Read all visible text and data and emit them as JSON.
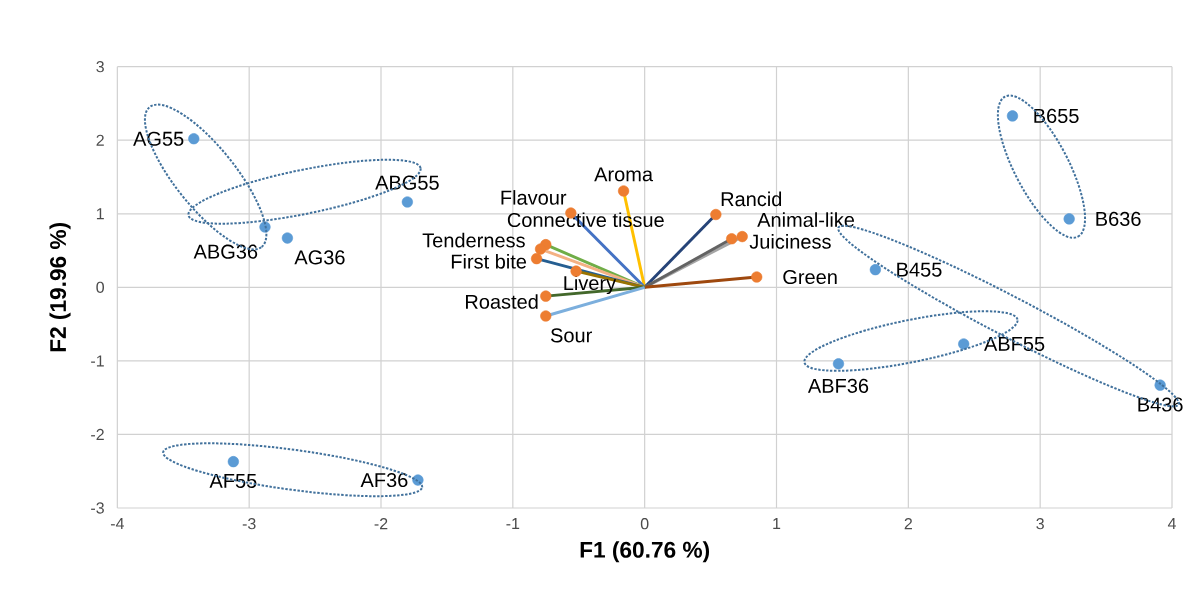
{
  "chart_data": {
    "type": "scatter",
    "xlabel": "F1 (60.76 %)",
    "ylabel": "F2 (19.96 %)",
    "xlim": [
      -4,
      4
    ],
    "ylim": [
      -3,
      3
    ],
    "xticks": [
      -4,
      -3,
      -2,
      -1,
      0,
      1,
      2,
      3,
      4
    ],
    "yticks": [
      -3,
      -2,
      -1,
      0,
      1,
      2,
      3
    ],
    "grid": true,
    "series": [
      {
        "type": "line",
        "marker": "none",
        "color": "#ffc000",
        "x": [
          0,
          -0.16
        ],
        "values": [
          0,
          1.31
        ]
      },
      {
        "type": "line",
        "marker": "none",
        "color": "#4472c4",
        "x": [
          0,
          -0.56
        ],
        "values": [
          0,
          1.01
        ]
      },
      {
        "type": "line",
        "marker": "none",
        "color": "#264478",
        "x": [
          0,
          0.54
        ],
        "values": [
          0,
          0.99
        ]
      },
      {
        "type": "line",
        "marker": "none",
        "color": "#a5a5a5",
        "x": [
          0,
          0.74
        ],
        "values": [
          0,
          0.69
        ]
      },
      {
        "type": "line",
        "marker": "none",
        "color": "#636363",
        "x": [
          0,
          0.66
        ],
        "values": [
          0,
          0.66
        ]
      },
      {
        "type": "line",
        "marker": "none",
        "color": "#9e480e",
        "x": [
          0,
          0.85
        ],
        "values": [
          0,
          0.14
        ]
      },
      {
        "type": "line",
        "marker": "none",
        "color": "#70ad47",
        "x": [
          0,
          -0.75
        ],
        "values": [
          0,
          0.58
        ]
      },
      {
        "type": "line",
        "marker": "none",
        "color": "#f4b183",
        "x": [
          0,
          -0.79
        ],
        "values": [
          0,
          0.52
        ]
      },
      {
        "type": "line",
        "marker": "none",
        "color": "#255e91",
        "x": [
          0,
          -0.82
        ],
        "values": [
          0,
          0.39
        ]
      },
      {
        "type": "line",
        "marker": "none",
        "color": "#997300",
        "x": [
          0,
          -0.52
        ],
        "values": [
          0,
          0.22
        ]
      },
      {
        "type": "line",
        "marker": "none",
        "color": "#43682b",
        "x": [
          0,
          -0.75
        ],
        "values": [
          0,
          -0.12
        ]
      },
      {
        "type": "line",
        "marker": "none",
        "color": "#7cafdd",
        "x": [
          0,
          -0.75
        ],
        "values": [
          0,
          -0.39
        ]
      },
      {
        "marker": "circle",
        "color": "#ed7d31",
        "x": [
          -0.16,
          -0.56,
          0.54,
          0.74,
          0.66,
          0.85,
          -0.75,
          -0.79,
          -0.82,
          -0.52,
          -0.75,
          -0.75
        ],
        "values": [
          1.31,
          1.01,
          0.99,
          0.69,
          0.66,
          0.14,
          0.58,
          0.52,
          0.39,
          0.22,
          -0.12,
          -0.39
        ],
        "value_labels": [
          "Aroma",
          "Flavour",
          "Rancid",
          "Animal-like",
          "Juiciness",
          "Green",
          "Connective tissue",
          "Tenderness",
          "First bite",
          "Livery",
          "Roasted",
          "Sour"
        ]
      },
      {
        "marker": "circle",
        "color": "#5b9bd5",
        "x": [
          -3.42,
          -2.88,
          -2.71,
          -1.8,
          -3.12,
          -1.72,
          2.79,
          3.22,
          1.75,
          2.42,
          1.47,
          3.91
        ],
        "values": [
          2.02,
          0.82,
          0.67,
          1.16,
          -2.37,
          -2.62,
          2.33,
          0.93,
          0.24,
          -0.77,
          -1.04,
          -1.33
        ],
        "value_labels": [
          "AG55",
          "ABG36",
          "AG36",
          "ABG55",
          "AF55",
          "AF36",
          "B655",
          "B636",
          "B455",
          "ABF55",
          "ABF36",
          "B436"
        ]
      }
    ]
  }
}
